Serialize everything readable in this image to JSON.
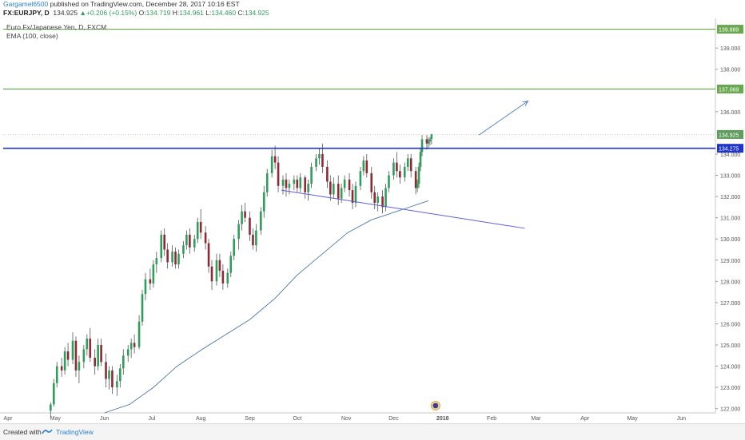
{
  "header": {
    "author": "Gargamel6500",
    "published": " published on TradingView.com, December 28, 2017 10:16 EST",
    "symbol": "FX:EURJPY, D",
    "last": "134.925",
    "change_arrow": "▲",
    "change": "+0.206 (+0.15%)",
    "o_label": "O:",
    "o": "134.719",
    "h_label": "H:",
    "h": "134.961",
    "l_label": "L:",
    "l": "134.460",
    "c_label": "C:",
    "c": "134.925"
  },
  "legend": {
    "instrument": "Euro Fx/Japanese Yen, D, FXCM",
    "indicator": "EMA (100, close)"
  },
  "footer": {
    "created_with": "Created with",
    "brand": "TradingView"
  },
  "colors": {
    "up": "#2e9e5b",
    "down": "#8c2a36",
    "wick": "#555555",
    "green_line": "#6aa84f",
    "blue_line": "#1f35c9",
    "trend_line": "#5b5fd6",
    "ema": "#4a78a8",
    "arrow": "#5a86c7",
    "last_price": "#5f9d5f"
  },
  "chart_data": {
    "type": "candlestick",
    "title": "Euro Fx/Japanese Yen, D, FXCM",
    "x_ticks": [
      "Apr",
      "May",
      "Jun",
      "Jul",
      "Aug",
      "Sep",
      "Oct",
      "Nov",
      "Dec",
      "2018",
      "Feb",
      "Mar",
      "Apr",
      "May",
      "Jun"
    ],
    "y_ticks": [
      "122.000",
      "123.000",
      "124.000",
      "125.000",
      "126.000",
      "127.000",
      "128.000",
      "129.000",
      "130.000",
      "131.000",
      "132.000",
      "133.000",
      "134.000",
      "136.000",
      "138.000",
      "139.000"
    ],
    "ylim": [
      121.8,
      140.4
    ],
    "x_range": [
      "2017-04-01",
      "2018-06-18"
    ],
    "horizontal_levels": [
      {
        "value": 139.889,
        "label": "139.889",
        "color": "#6aa84f"
      },
      {
        "value": 137.069,
        "label": "137.069",
        "color": "#6aa84f"
      },
      {
        "value": 134.275,
        "label": "134.275",
        "color": "#1f35c9"
      }
    ],
    "last_price": {
      "value": 134.925,
      "label": "134.925"
    },
    "trendline": {
      "from": {
        "date": "2017-09-24",
        "value": 132.3
      },
      "to": {
        "date": "2018-02-25",
        "value": 130.5
      }
    },
    "projection_arrow": {
      "from": {
        "date": "2018-01-27",
        "value": 134.9
      },
      "to": {
        "date": "2018-02-27",
        "value": 136.5
      }
    },
    "ema": {
      "name": "EMA (100, close)",
      "points": [
        [
          "2017-06-04",
          121.8
        ],
        [
          "2017-06-20",
          122.2
        ],
        [
          "2017-07-05",
          123.0
        ],
        [
          "2017-07-20",
          124.0
        ],
        [
          "2017-08-05",
          124.8
        ],
        [
          "2017-08-20",
          125.5
        ],
        [
          "2017-09-04",
          126.2
        ],
        [
          "2017-09-20",
          127.2
        ],
        [
          "2017-10-04",
          128.3
        ],
        [
          "2017-10-20",
          129.3
        ],
        [
          "2017-11-05",
          130.3
        ],
        [
          "2017-11-20",
          130.9
        ],
        [
          "2017-12-06",
          131.3
        ],
        [
          "2017-12-26",
          131.8
        ]
      ]
    },
    "candles": [
      {
        "date": "2017-05-01",
        "o": 121.9,
        "h": 122.3,
        "l": 121.6,
        "c": 122.2
      },
      {
        "date": "2017-05-03",
        "o": 122.2,
        "h": 123.4,
        "l": 122.1,
        "c": 123.2
      },
      {
        "date": "2017-05-05",
        "o": 123.2,
        "h": 124.2,
        "l": 123.0,
        "c": 124.0
      },
      {
        "date": "2017-05-08",
        "o": 124.0,
        "h": 124.4,
        "l": 123.5,
        "c": 123.8
      },
      {
        "date": "2017-05-10",
        "o": 123.8,
        "h": 124.9,
        "l": 123.6,
        "c": 124.7
      },
      {
        "date": "2017-05-12",
        "o": 124.7,
        "h": 125.1,
        "l": 124.0,
        "c": 124.3
      },
      {
        "date": "2017-05-15",
        "o": 124.3,
        "h": 125.6,
        "l": 124.1,
        "c": 125.2
      },
      {
        "date": "2017-05-17",
        "o": 125.2,
        "h": 125.4,
        "l": 123.5,
        "c": 123.8
      },
      {
        "date": "2017-05-19",
        "o": 123.8,
        "h": 124.5,
        "l": 123.2,
        "c": 124.2
      },
      {
        "date": "2017-05-22",
        "o": 124.2,
        "h": 125.0,
        "l": 123.9,
        "c": 124.8
      },
      {
        "date": "2017-05-24",
        "o": 124.8,
        "h": 125.5,
        "l": 124.5,
        "c": 125.3
      },
      {
        "date": "2017-05-26",
        "o": 125.3,
        "h": 125.8,
        "l": 124.2,
        "c": 124.4
      },
      {
        "date": "2017-05-29",
        "o": 124.4,
        "h": 124.8,
        "l": 123.6,
        "c": 124.0
      },
      {
        "date": "2017-05-31",
        "o": 124.0,
        "h": 125.3,
        "l": 123.8,
        "c": 125.0
      },
      {
        "date": "2017-06-02",
        "o": 125.0,
        "h": 125.3,
        "l": 124.0,
        "c": 124.2
      },
      {
        "date": "2017-06-05",
        "o": 124.2,
        "h": 124.6,
        "l": 123.0,
        "c": 123.4
      },
      {
        "date": "2017-06-07",
        "o": 123.4,
        "h": 124.0,
        "l": 122.9,
        "c": 123.8
      },
      {
        "date": "2017-06-09",
        "o": 123.8,
        "h": 124.0,
        "l": 122.7,
        "c": 123.0
      },
      {
        "date": "2017-06-12",
        "o": 123.0,
        "h": 123.6,
        "l": 122.6,
        "c": 123.3
      },
      {
        "date": "2017-06-14",
        "o": 123.3,
        "h": 124.1,
        "l": 123.0,
        "c": 123.9
      },
      {
        "date": "2017-06-16",
        "o": 123.9,
        "h": 124.8,
        "l": 123.6,
        "c": 124.5
      },
      {
        "date": "2017-06-19",
        "o": 124.5,
        "h": 125.0,
        "l": 124.2,
        "c": 124.8
      },
      {
        "date": "2017-06-21",
        "o": 124.8,
        "h": 125.3,
        "l": 124.4,
        "c": 125.1
      },
      {
        "date": "2017-06-23",
        "o": 125.1,
        "h": 125.5,
        "l": 124.6,
        "c": 124.9
      },
      {
        "date": "2017-06-26",
        "o": 124.9,
        "h": 126.4,
        "l": 124.8,
        "c": 126.1
      },
      {
        "date": "2017-06-28",
        "o": 126.1,
        "h": 127.6,
        "l": 125.9,
        "c": 127.4
      },
      {
        "date": "2017-06-30",
        "o": 127.4,
        "h": 128.4,
        "l": 127.1,
        "c": 128.1
      },
      {
        "date": "2017-07-03",
        "o": 128.1,
        "h": 128.6,
        "l": 127.6,
        "c": 127.9
      },
      {
        "date": "2017-07-05",
        "o": 127.9,
        "h": 129.0,
        "l": 127.7,
        "c": 128.8
      },
      {
        "date": "2017-07-07",
        "o": 128.8,
        "h": 129.4,
        "l": 128.4,
        "c": 129.1
      },
      {
        "date": "2017-07-10",
        "o": 129.1,
        "h": 130.4,
        "l": 128.9,
        "c": 130.2
      },
      {
        "date": "2017-07-12",
        "o": 130.2,
        "h": 130.5,
        "l": 129.2,
        "c": 129.5
      },
      {
        "date": "2017-07-14",
        "o": 129.5,
        "h": 129.8,
        "l": 128.6,
        "c": 128.9
      },
      {
        "date": "2017-07-17",
        "o": 128.9,
        "h": 129.7,
        "l": 128.7,
        "c": 129.4
      },
      {
        "date": "2017-07-19",
        "o": 129.4,
        "h": 129.6,
        "l": 128.6,
        "c": 128.8
      },
      {
        "date": "2017-07-21",
        "o": 128.8,
        "h": 129.5,
        "l": 128.6,
        "c": 129.3
      },
      {
        "date": "2017-07-24",
        "o": 129.3,
        "h": 129.9,
        "l": 129.1,
        "c": 129.7
      },
      {
        "date": "2017-07-26",
        "o": 129.7,
        "h": 130.4,
        "l": 129.5,
        "c": 130.2
      },
      {
        "date": "2017-07-28",
        "o": 130.2,
        "h": 130.5,
        "l": 129.3,
        "c": 129.6
      },
      {
        "date": "2017-07-31",
        "o": 129.6,
        "h": 130.2,
        "l": 129.4,
        "c": 130.0
      },
      {
        "date": "2017-08-02",
        "o": 130.0,
        "h": 131.0,
        "l": 129.8,
        "c": 130.8
      },
      {
        "date": "2017-08-04",
        "o": 130.8,
        "h": 131.4,
        "l": 130.0,
        "c": 130.3
      },
      {
        "date": "2017-08-07",
        "o": 130.3,
        "h": 130.6,
        "l": 129.5,
        "c": 129.8
      },
      {
        "date": "2017-08-09",
        "o": 129.8,
        "h": 130.0,
        "l": 128.4,
        "c": 128.7
      },
      {
        "date": "2017-08-11",
        "o": 128.7,
        "h": 129.0,
        "l": 127.6,
        "c": 128.0
      },
      {
        "date": "2017-08-14",
        "o": 128.0,
        "h": 129.3,
        "l": 127.8,
        "c": 129.0
      },
      {
        "date": "2017-08-16",
        "o": 129.0,
        "h": 129.3,
        "l": 128.2,
        "c": 128.5
      },
      {
        "date": "2017-08-18",
        "o": 128.5,
        "h": 128.8,
        "l": 127.6,
        "c": 127.9
      },
      {
        "date": "2017-08-21",
        "o": 127.9,
        "h": 128.6,
        "l": 127.7,
        "c": 128.4
      },
      {
        "date": "2017-08-23",
        "o": 128.4,
        "h": 129.4,
        "l": 128.2,
        "c": 129.2
      },
      {
        "date": "2017-08-25",
        "o": 129.2,
        "h": 130.2,
        "l": 129.0,
        "c": 130.0
      },
      {
        "date": "2017-08-28",
        "o": 130.0,
        "h": 130.9,
        "l": 129.5,
        "c": 130.7
      },
      {
        "date": "2017-08-30",
        "o": 130.7,
        "h": 131.6,
        "l": 130.4,
        "c": 131.3
      },
      {
        "date": "2017-09-01",
        "o": 131.3,
        "h": 131.7,
        "l": 130.8,
        "c": 131.0
      },
      {
        "date": "2017-09-04",
        "o": 131.0,
        "h": 131.3,
        "l": 129.9,
        "c": 130.2
      },
      {
        "date": "2017-09-06",
        "o": 130.2,
        "h": 130.5,
        "l": 129.5,
        "c": 129.7
      },
      {
        "date": "2017-09-08",
        "o": 129.7,
        "h": 130.7,
        "l": 129.4,
        "c": 130.4
      },
      {
        "date": "2017-09-11",
        "o": 130.4,
        "h": 131.5,
        "l": 130.2,
        "c": 131.3
      },
      {
        "date": "2017-09-13",
        "o": 131.3,
        "h": 132.5,
        "l": 131.0,
        "c": 132.2
      },
      {
        "date": "2017-09-15",
        "o": 132.2,
        "h": 133.3,
        "l": 132.0,
        "c": 133.1
      },
      {
        "date": "2017-09-18",
        "o": 133.1,
        "h": 134.2,
        "l": 132.9,
        "c": 133.9
      },
      {
        "date": "2017-09-20",
        "o": 133.9,
        "h": 134.4,
        "l": 133.3,
        "c": 133.6
      },
      {
        "date": "2017-09-22",
        "o": 133.6,
        "h": 133.9,
        "l": 132.2,
        "c": 132.5
      },
      {
        "date": "2017-09-25",
        "o": 132.5,
        "h": 133.0,
        "l": 132.1,
        "c": 132.8
      },
      {
        "date": "2017-09-27",
        "o": 132.8,
        "h": 133.1,
        "l": 132.0,
        "c": 132.4
      },
      {
        "date": "2017-09-29",
        "o": 132.4,
        "h": 132.8,
        "l": 132.1,
        "c": 132.6
      },
      {
        "date": "2017-10-02",
        "o": 132.6,
        "h": 133.0,
        "l": 132.3,
        "c": 132.8
      },
      {
        "date": "2017-10-04",
        "o": 132.8,
        "h": 133.0,
        "l": 132.2,
        "c": 132.4
      },
      {
        "date": "2017-10-06",
        "o": 132.4,
        "h": 133.1,
        "l": 132.2,
        "c": 132.9
      },
      {
        "date": "2017-10-09",
        "o": 132.9,
        "h": 133.0,
        "l": 131.9,
        "c": 132.2
      },
      {
        "date": "2017-10-11",
        "o": 132.2,
        "h": 132.8,
        "l": 131.8,
        "c": 132.6
      },
      {
        "date": "2017-10-13",
        "o": 132.6,
        "h": 133.6,
        "l": 132.4,
        "c": 133.4
      },
      {
        "date": "2017-10-16",
        "o": 133.4,
        "h": 134.0,
        "l": 133.2,
        "c": 133.8
      },
      {
        "date": "2017-10-18",
        "o": 133.8,
        "h": 134.3,
        "l": 133.5,
        "c": 134.0
      },
      {
        "date": "2017-10-20",
        "o": 134.0,
        "h": 134.5,
        "l": 133.1,
        "c": 133.4
      },
      {
        "date": "2017-10-23",
        "o": 133.4,
        "h": 133.7,
        "l": 132.4,
        "c": 132.7
      },
      {
        "date": "2017-10-25",
        "o": 132.7,
        "h": 133.0,
        "l": 131.8,
        "c": 132.1
      },
      {
        "date": "2017-10-27",
        "o": 132.1,
        "h": 132.9,
        "l": 131.9,
        "c": 132.6
      },
      {
        "date": "2017-10-30",
        "o": 132.6,
        "h": 133.0,
        "l": 131.6,
        "c": 131.9
      },
      {
        "date": "2017-11-01",
        "o": 131.9,
        "h": 132.6,
        "l": 131.7,
        "c": 132.4
      },
      {
        "date": "2017-11-03",
        "o": 132.4,
        "h": 133.0,
        "l": 132.2,
        "c": 132.8
      },
      {
        "date": "2017-11-06",
        "o": 132.8,
        "h": 133.1,
        "l": 132.0,
        "c": 132.3
      },
      {
        "date": "2017-11-08",
        "o": 132.3,
        "h": 132.6,
        "l": 131.4,
        "c": 131.7
      },
      {
        "date": "2017-11-10",
        "o": 131.7,
        "h": 132.7,
        "l": 131.5,
        "c": 132.5
      },
      {
        "date": "2017-11-13",
        "o": 132.5,
        "h": 133.4,
        "l": 132.3,
        "c": 133.2
      },
      {
        "date": "2017-11-15",
        "o": 133.2,
        "h": 133.9,
        "l": 133.0,
        "c": 133.7
      },
      {
        "date": "2017-11-17",
        "o": 133.7,
        "h": 134.0,
        "l": 132.9,
        "c": 133.1
      },
      {
        "date": "2017-11-20",
        "o": 133.1,
        "h": 133.4,
        "l": 131.9,
        "c": 132.2
      },
      {
        "date": "2017-11-22",
        "o": 132.2,
        "h": 132.5,
        "l": 131.4,
        "c": 131.7
      },
      {
        "date": "2017-11-24",
        "o": 131.7,
        "h": 132.2,
        "l": 131.3,
        "c": 132.0
      },
      {
        "date": "2017-11-27",
        "o": 132.0,
        "h": 132.3,
        "l": 131.2,
        "c": 131.5
      },
      {
        "date": "2017-11-29",
        "o": 131.5,
        "h": 132.6,
        "l": 131.3,
        "c": 132.4
      },
      {
        "date": "2017-12-01",
        "o": 132.4,
        "h": 133.2,
        "l": 132.2,
        "c": 133.0
      },
      {
        "date": "2017-12-04",
        "o": 133.0,
        "h": 133.8,
        "l": 132.8,
        "c": 133.6
      },
      {
        "date": "2017-12-06",
        "o": 133.6,
        "h": 134.1,
        "l": 132.9,
        "c": 133.2
      },
      {
        "date": "2017-12-08",
        "o": 133.2,
        "h": 133.5,
        "l": 132.6,
        "c": 132.9
      },
      {
        "date": "2017-12-11",
        "o": 132.9,
        "h": 133.6,
        "l": 132.7,
        "c": 133.4
      },
      {
        "date": "2017-12-13",
        "o": 133.4,
        "h": 134.0,
        "l": 133.2,
        "c": 133.8
      },
      {
        "date": "2017-12-15",
        "o": 133.8,
        "h": 134.0,
        "l": 132.9,
        "c": 133.2
      },
      {
        "date": "2017-12-18",
        "o": 133.2,
        "h": 133.4,
        "l": 132.1,
        "c": 132.4
      },
      {
        "date": "2017-12-19",
        "o": 132.4,
        "h": 132.8,
        "l": 132.2,
        "c": 132.6
      },
      {
        "date": "2017-12-20",
        "o": 132.6,
        "h": 133.6,
        "l": 132.4,
        "c": 133.4
      },
      {
        "date": "2017-12-21",
        "o": 133.4,
        "h": 134.3,
        "l": 133.2,
        "c": 134.1
      },
      {
        "date": "2017-12-22",
        "o": 134.1,
        "h": 134.9,
        "l": 133.9,
        "c": 134.7
      },
      {
        "date": "2017-12-25",
        "o": 134.7,
        "h": 134.9,
        "l": 134.2,
        "c": 134.5
      },
      {
        "date": "2017-12-26",
        "o": 134.5,
        "h": 134.8,
        "l": 134.3,
        "c": 134.6
      },
      {
        "date": "2017-12-27",
        "o": 134.6,
        "h": 134.8,
        "l": 134.4,
        "c": 134.7
      },
      {
        "date": "2017-12-28",
        "o": 134.719,
        "h": 134.961,
        "l": 134.46,
        "c": 134.925
      }
    ]
  }
}
